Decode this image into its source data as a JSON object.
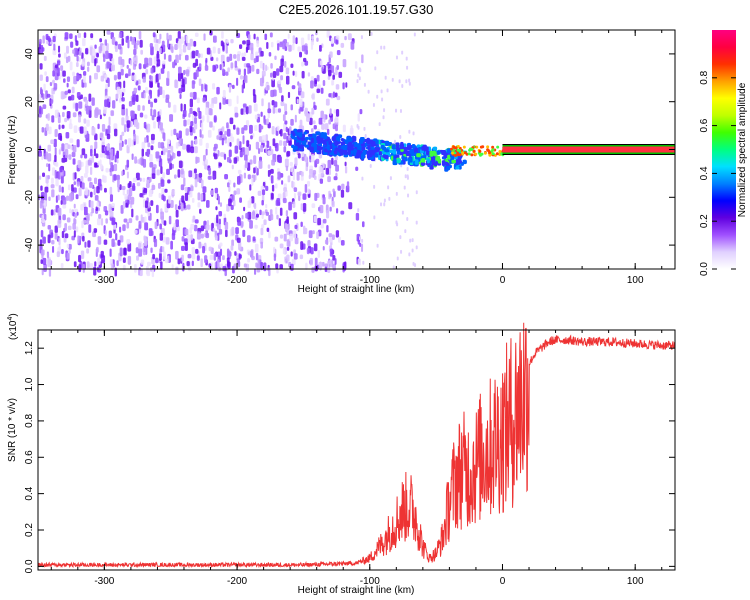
{
  "title": "C2E5.2026.101.19.57.G30",
  "chart_data": [
    {
      "type": "heatmap",
      "xlabel": "Height of straight line (km)",
      "ylabel": "Frequency (Hz)",
      "xlim": [
        -350,
        130
      ],
      "ylim": [
        -50,
        50
      ],
      "xticks": [
        -300,
        -200,
        -100,
        0,
        100
      ],
      "yticks": [
        -40,
        -20,
        0,
        20,
        40
      ],
      "colorbar": {
        "label": "Normalized spectral amplitude",
        "range": [
          0,
          1
        ],
        "ticks": [
          0.0,
          0.2,
          0.4,
          0.6,
          0.8
        ],
        "colors": [
          "#ffffff",
          "#e0d0ff",
          "#a050ff",
          "#6000e0",
          "#0000ff",
          "#0080ff",
          "#00e0ff",
          "#00ff80",
          "#40ff00",
          "#c0ff00",
          "#ffff00",
          "#ffa000",
          "#ff3000",
          "#ff0040",
          "#ff0080"
        ]
      },
      "features": [
        {
          "x_range": [
            -350,
            -110
          ],
          "freq_range": [
            -50,
            50
          ],
          "amplitude": "0.0-0.2 noise"
        },
        {
          "x_range": [
            -160,
            -40
          ],
          "freq_center": [
            5,
            -10
          ],
          "amplitude": "0.2-0.5"
        },
        {
          "x_range": [
            -40,
            0
          ],
          "freq_center": [
            0,
            2
          ],
          "amplitude": "0.5-0.9"
        },
        {
          "x_range": [
            0,
            130
          ],
          "freq_center": [
            0,
            0
          ],
          "amplitude": "1.0"
        }
      ]
    },
    {
      "type": "line",
      "xlabel": "Height of straight line (km)",
      "ylabel": "SNR (10 * v/v)",
      "yunit_label": "(x10",
      "yunit_exp": "4",
      "yunit_close": ")",
      "xlim": [
        -350,
        130
      ],
      "ylim": [
        -0.02,
        1.3
      ],
      "xticks": [
        -300,
        -200,
        -100,
        0,
        100
      ],
      "yticks": [
        0.0,
        0.2,
        0.4,
        0.6,
        0.8,
        1.0,
        1.2
      ],
      "grid": false,
      "series": [
        {
          "color": "#ee3333",
          "x": [
            -350,
            -300,
            -250,
            -200,
            -150,
            -110,
            -100,
            -90,
            -80,
            -75,
            -70,
            -65,
            -60,
            -55,
            -50,
            -45,
            -40,
            -35,
            -30,
            -25,
            -20,
            -15,
            -10,
            -5,
            0,
            5,
            10,
            15,
            20,
            25,
            30,
            35,
            40,
            50,
            60,
            80,
            100,
            120,
            130
          ],
          "y": [
            0.01,
            0.01,
            0.01,
            0.01,
            0.01,
            0.02,
            0.05,
            0.15,
            0.28,
            0.35,
            0.38,
            0.3,
            0.12,
            0.05,
            0.08,
            0.18,
            0.4,
            0.55,
            0.6,
            0.58,
            0.62,
            0.7,
            0.72,
            0.78,
            0.82,
            0.88,
            0.95,
            1.05,
            1.12,
            1.18,
            1.21,
            1.24,
            1.25,
            1.25,
            1.24,
            1.24,
            1.23,
            1.22,
            1.22
          ]
        }
      ]
    }
  ]
}
